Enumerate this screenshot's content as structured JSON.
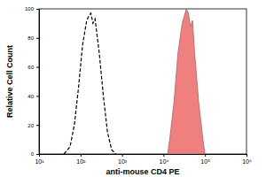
{
  "chart_data": {
    "type": "area",
    "xlabel": "anti-mouse CD4 PE",
    "ylabel": "Relative Cell Count",
    "log": "x",
    "xlim": [
      10,
      1000000
    ],
    "xticks": [
      {
        "value": 10,
        "label": "10¹"
      },
      {
        "value": 100,
        "label": "10²"
      },
      {
        "value": 1000,
        "label": "10³"
      },
      {
        "value": 10000,
        "label": "10⁴"
      },
      {
        "value": 100000,
        "label": "10⁵"
      },
      {
        "value": 1000000,
        "label": "10⁶"
      }
    ],
    "ylim": [
      0,
      100
    ],
    "yticks": [
      0,
      20,
      40,
      60,
      80,
      100
    ],
    "series": [
      {
        "type": "line",
        "line_style": "dashed",
        "color": "#000000",
        "x": [
          40,
          56,
          71,
          89,
          112,
          141,
          158,
          178,
          200,
          224,
          282,
          355,
          447,
          562,
          708
        ],
        "values": [
          0,
          5,
          20,
          45,
          75,
          92,
          95,
          97,
          90,
          93,
          70,
          40,
          15,
          3,
          0
        ]
      },
      {
        "type": "area",
        "color": "#f08080",
        "x": [
          12600,
          14100,
          17800,
          22400,
          28200,
          35500,
          39800,
          44700,
          50100,
          56200,
          70800,
          89100,
          100000
        ],
        "values": [
          0,
          10,
          35,
          70,
          90,
          100,
          97,
          88,
          92,
          70,
          35,
          10,
          0
        ]
      }
    ]
  }
}
